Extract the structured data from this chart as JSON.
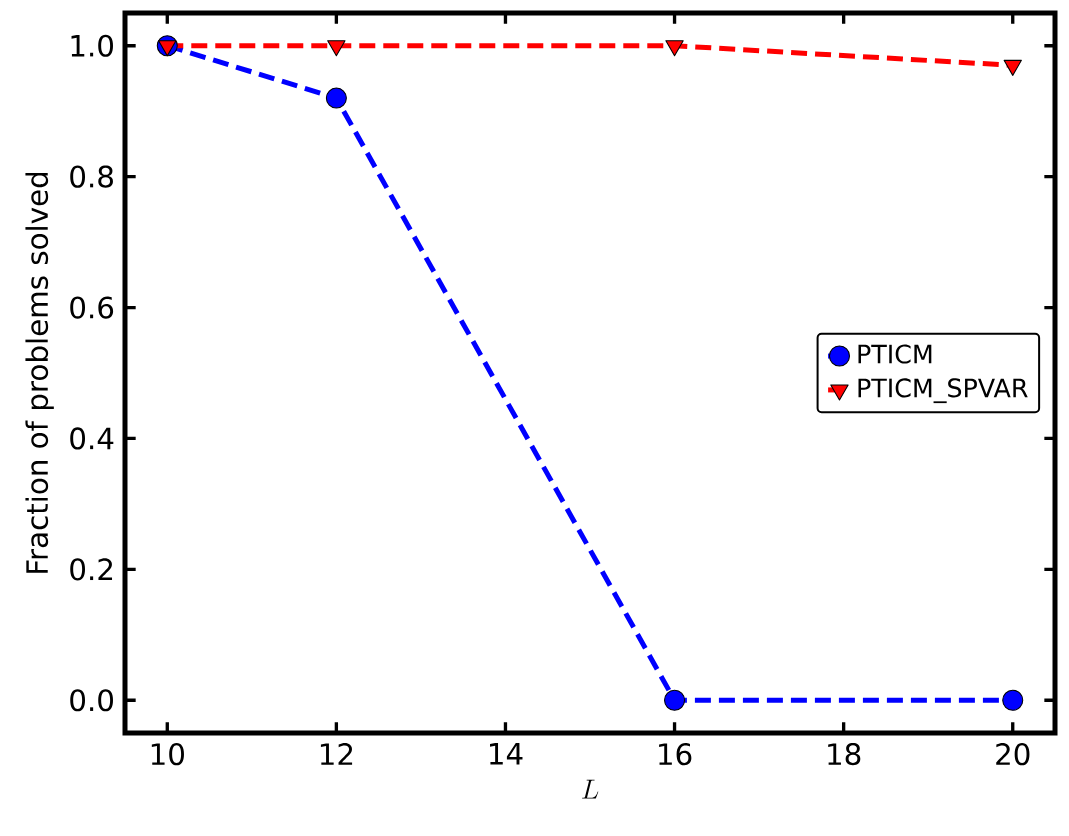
{
  "chart_data": {
    "type": "line",
    "xlabel": "L",
    "ylabel": "Fraction of problems solved",
    "x": [
      10,
      12,
      16,
      20
    ],
    "series": [
      {
        "name": "PTICM",
        "color": "#0000ff",
        "marker": "circle",
        "values": [
          1.0,
          0.92,
          0,
          0
        ]
      },
      {
        "name": "PTICM_SPVAR",
        "color": "#ff0000",
        "marker": "triangle",
        "values": [
          1.0,
          1.0,
          1.0,
          0.97
        ]
      }
    ],
    "xlim": [
      9.5,
      20.5
    ],
    "ylim": [
      -0.05,
      1.05
    ],
    "xticks": [
      10,
      12,
      14,
      16,
      18,
      20
    ],
    "yticks": [
      {
        "value": 0,
        "label": "0.0"
      },
      {
        "value": 0.2,
        "label": "0.2"
      },
      {
        "value": 0.4,
        "label": "0.4"
      },
      {
        "value": 0.6,
        "label": "0.6"
      },
      {
        "value": 0.8,
        "label": "0.8"
      },
      {
        "value": 1.0,
        "label": "1.0"
      }
    ],
    "legend": "right",
    "line_style": "dashed"
  }
}
